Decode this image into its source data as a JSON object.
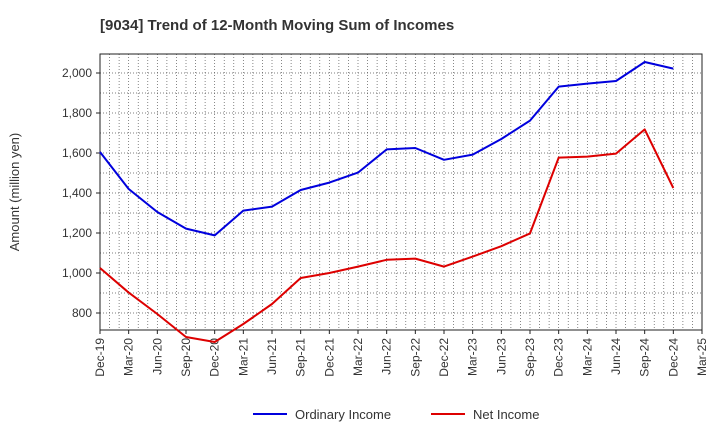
{
  "chart_data": {
    "type": "line",
    "title": "[9034]  Trend of 12-Month Moving Sum of Incomes",
    "xlabel": "",
    "ylabel": "Amount (million yen)",
    "ylim": [
      715,
      2095
    ],
    "yticks": [
      800,
      1000,
      1200,
      1400,
      1600,
      1800,
      2000
    ],
    "ytick_labels": [
      "800",
      "1,000",
      "1,200",
      "1,400",
      "1,600",
      "1,800",
      "2,000"
    ],
    "categories": [
      "Dec-19",
      "Mar-20",
      "Jun-20",
      "Sep-20",
      "Dec-20",
      "Mar-21",
      "Jun-21",
      "Sep-21",
      "Dec-21",
      "Mar-22",
      "Jun-22",
      "Sep-22",
      "Dec-22",
      "Mar-23",
      "Jun-23",
      "Sep-23",
      "Dec-23",
      "Mar-24",
      "Jun-24",
      "Sep-24",
      "Dec-24",
      "Mar-25"
    ],
    "grid": true,
    "legend_position": "bottom",
    "series": [
      {
        "name": "Ordinary Income",
        "color": "#0000dd",
        "values": [
          1605,
          1420,
          1305,
          1222,
          1188,
          1312,
          1332,
          1415,
          1452,
          1502,
          1618,
          1625,
          1566,
          1592,
          1670,
          1762,
          1932,
          1947,
          1960,
          2055,
          2022,
          null
        ]
      },
      {
        "name": "Net Income",
        "color": "#dd0000",
        "values": [
          1025,
          902,
          795,
          680,
          655,
          745,
          845,
          975,
          1000,
          1032,
          1066,
          1072,
          1032,
          1082,
          1134,
          1198,
          1577,
          1582,
          1597,
          1718,
          1425,
          null
        ]
      }
    ]
  }
}
